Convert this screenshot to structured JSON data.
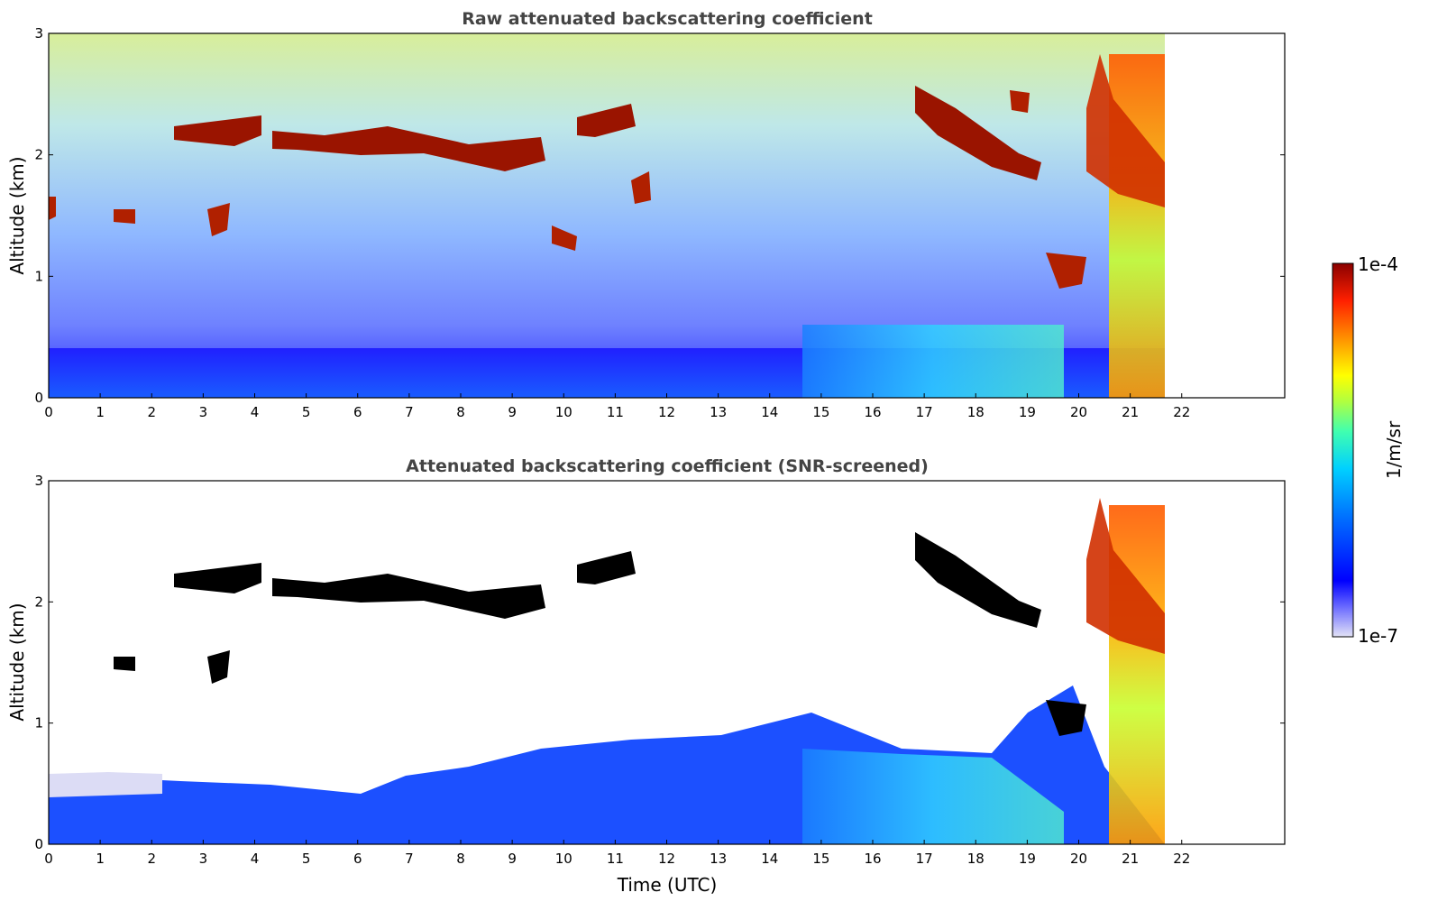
{
  "chart_data": [
    {
      "type": "heatmap",
      "title": "Raw attenuated backscattering coefficient",
      "xlabel": "",
      "ylabel": "Altitude (km)",
      "xlim": [
        0,
        24
      ],
      "ylim": [
        0,
        3
      ],
      "x_ticks": [
        0,
        1,
        2,
        3,
        4,
        5,
        6,
        7,
        8,
        9,
        10,
        11,
        12,
        13,
        14,
        15,
        16,
        17,
        18,
        19,
        20,
        21,
        22
      ],
      "y_ticks": [
        0,
        1,
        2,
        3
      ],
      "data_end_time": 21.65,
      "features": [
        {
          "kind": "boundary_layer",
          "t_start": 0,
          "t_end": 21.65,
          "alt_top": 0.4
        },
        {
          "kind": "cloud_layer",
          "t_start": 2.4,
          "t_end": 4.1,
          "alt": 2.2
        },
        {
          "kind": "cloud_layer",
          "t_start": 4.3,
          "t_end": 9.6,
          "alt": 2.05
        },
        {
          "kind": "cloud_layer",
          "t_start": 10.3,
          "t_end": 11.4,
          "alt": 2.3
        },
        {
          "kind": "cloud_layer",
          "t_start": 17.0,
          "t_end": 19.1,
          "alt": 2.1
        },
        {
          "kind": "cloud_layer",
          "t_start": 20.2,
          "t_end": 21.65,
          "alt": 1.9
        }
      ]
    },
    {
      "type": "heatmap",
      "title": "Attenuated backscattering coefficient (SNR-screened)",
      "xlabel": "Time (UTC)",
      "ylabel": "Altitude (km)",
      "xlim": [
        0,
        24
      ],
      "ylim": [
        0,
        3
      ],
      "x_ticks": [
        0,
        1,
        2,
        3,
        4,
        5,
        6,
        7,
        8,
        9,
        10,
        11,
        12,
        13,
        14,
        15,
        16,
        17,
        18,
        19,
        20,
        21,
        22
      ],
      "y_ticks": [
        0,
        1,
        2,
        3
      ],
      "data_end_time": 21.65
    }
  ],
  "colorbar": {
    "label": "1/m/sr",
    "max_label": "1e-4",
    "min_label": "1e-7",
    "colormap": [
      "#d6d6f5",
      "#6060ff",
      "#0000ff",
      "#0080ff",
      "#00d0ff",
      "#40ffc0",
      "#a0ff60",
      "#ffff00",
      "#ffa000",
      "#ff3000",
      "#c00000",
      "#800000"
    ]
  }
}
